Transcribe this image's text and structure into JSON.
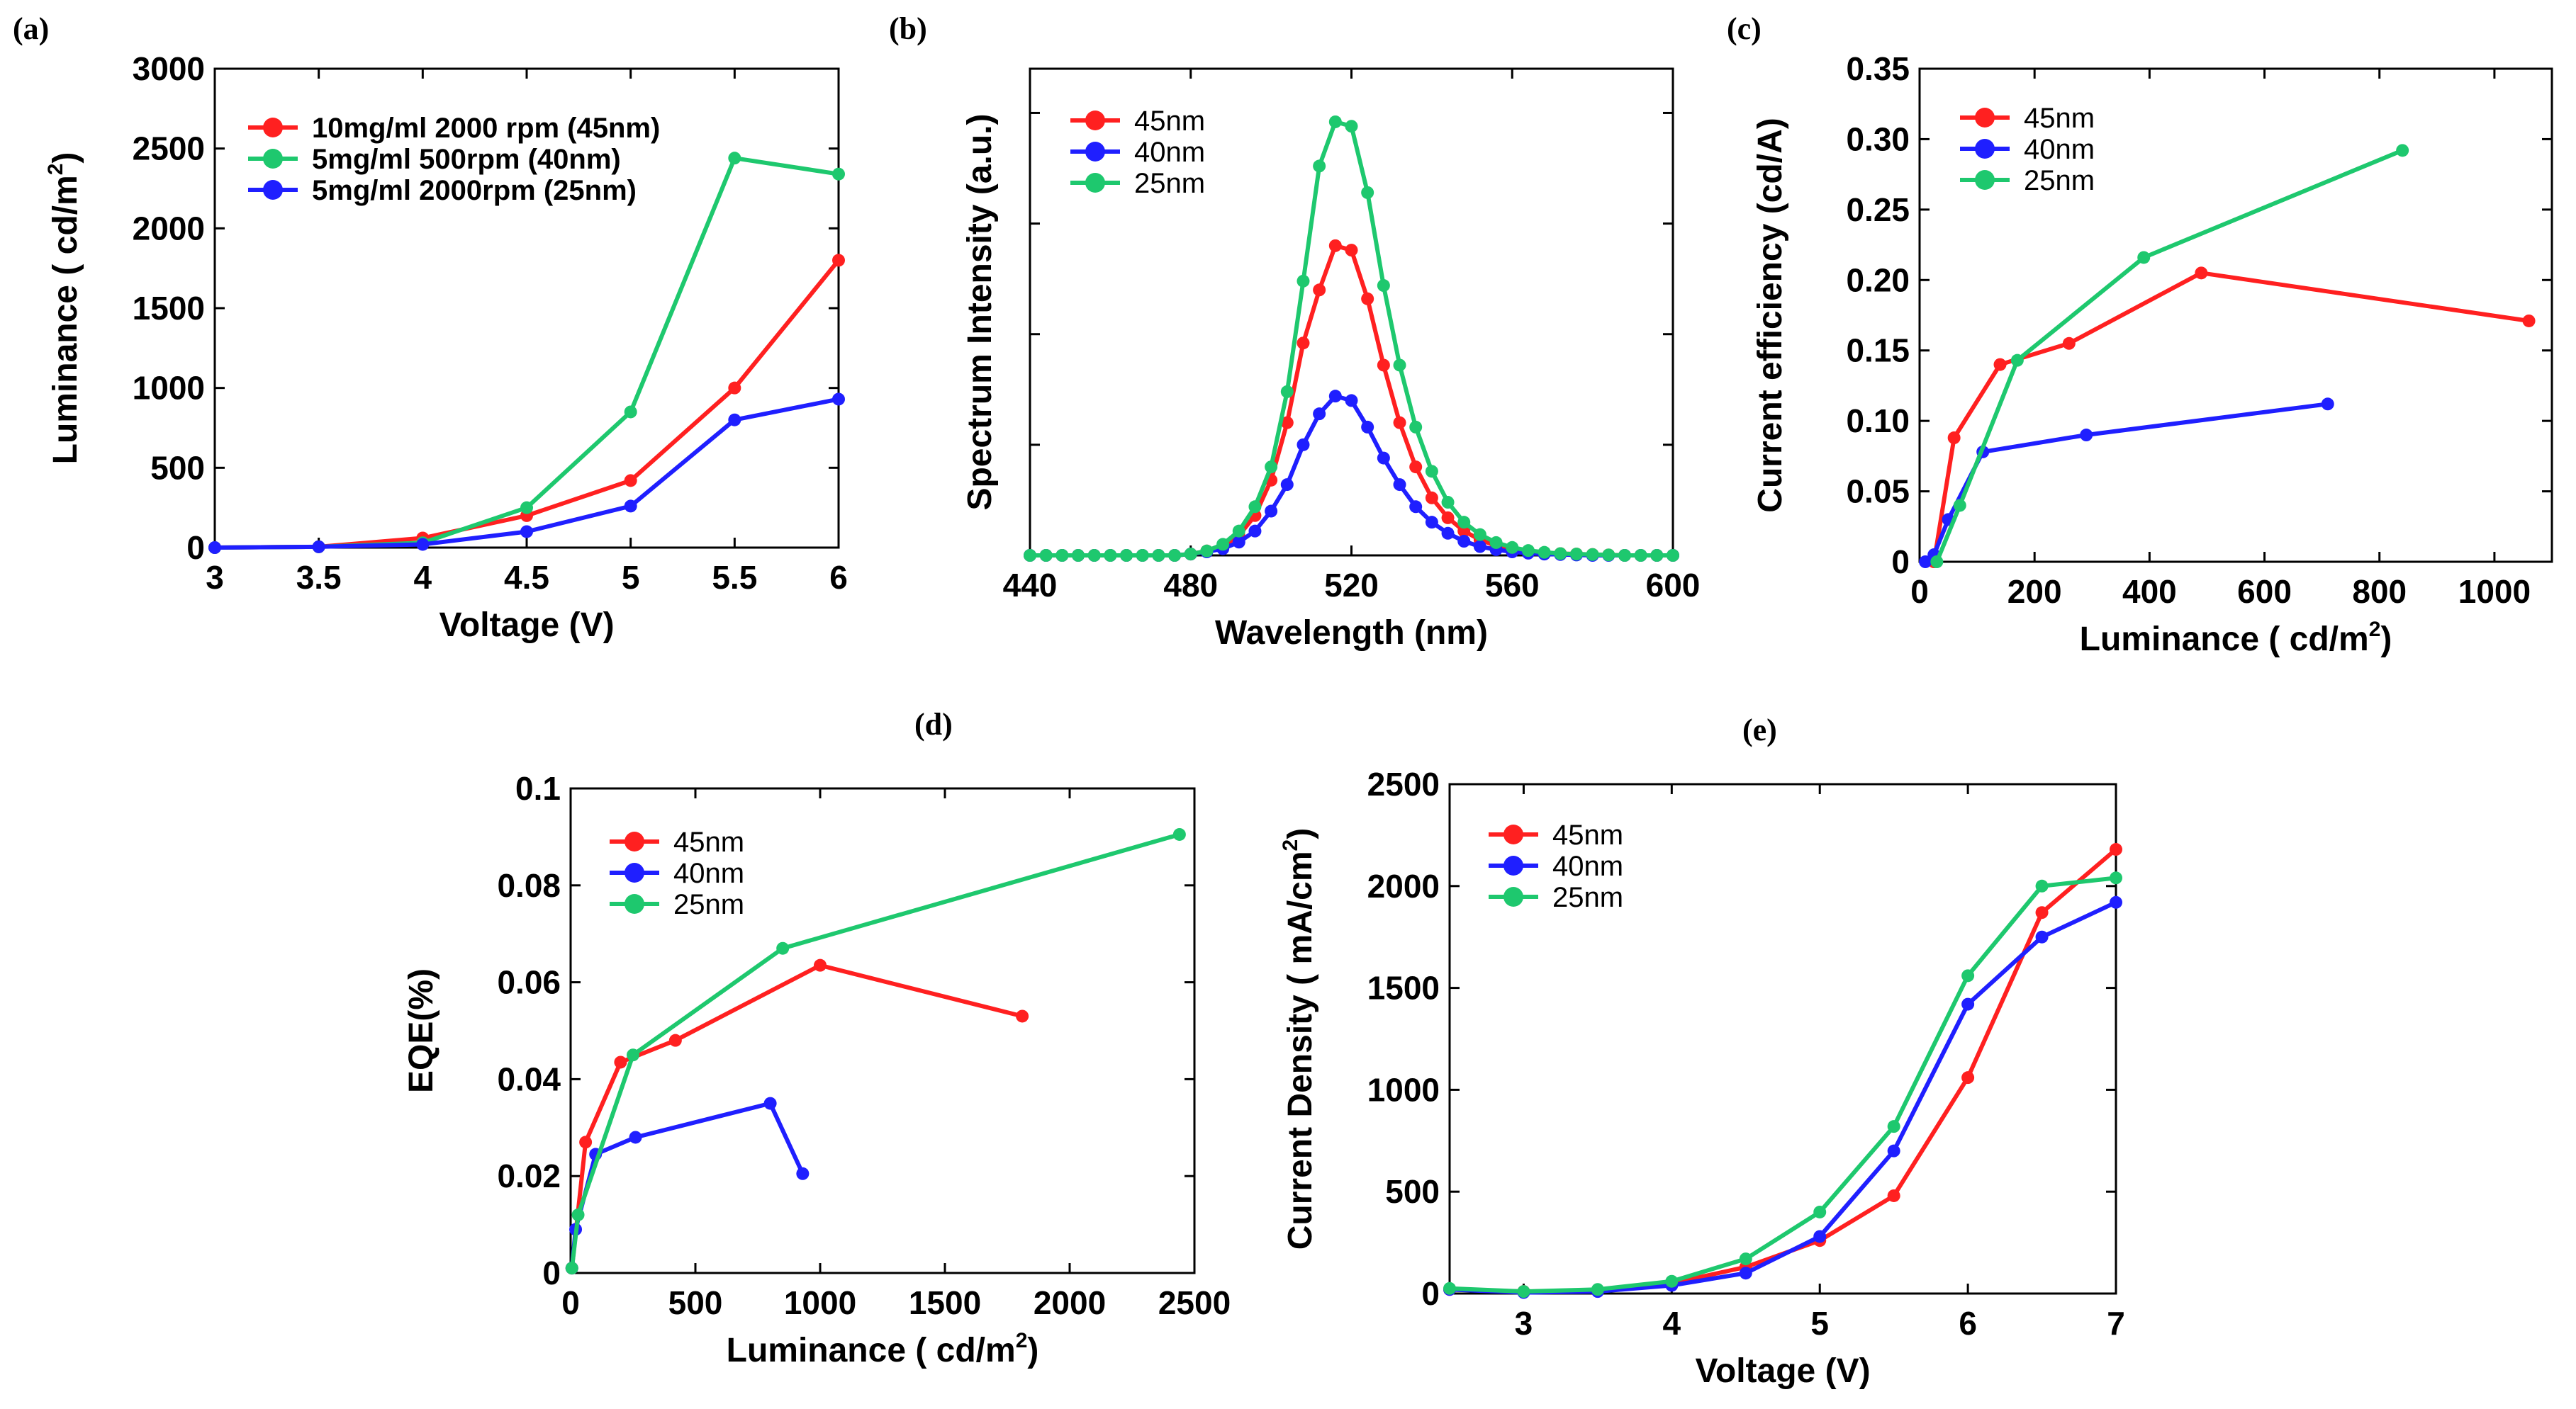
{
  "chart_data": [
    {
      "id": "a",
      "panel_label": "(a)",
      "type": "line",
      "xlabel": "Voltage (V)",
      "ylabel": "Luminance ( cd/m",
      "ylabel_sup": "2",
      "ylabel_end": ")",
      "xlim": [
        3,
        6
      ],
      "ylim": [
        0,
        3000
      ],
      "xticks": [
        3,
        3.5,
        4,
        4.5,
        5,
        5.5,
        6
      ],
      "xtick_labels": [
        "3",
        "3.5",
        "4",
        "4.5",
        "5",
        "5.5",
        "6"
      ],
      "yticks": [
        0,
        500,
        1000,
        1500,
        2000,
        2500,
        3000
      ],
      "ytick_labels": [
        "0",
        "500",
        "1000",
        "1500",
        "2000",
        "2500",
        "3000"
      ],
      "legend_bold": true,
      "series": [
        {
          "name": "10mg/ml 2000 rpm (45nm)",
          "color": "#ff2020",
          "x": [
            3,
            3.5,
            4,
            4.5,
            5,
            5.5,
            6
          ],
          "y": [
            0,
            5,
            60,
            200,
            420,
            1000,
            1800
          ]
        },
        {
          "name": "5mg/ml 500rpm (40nm)",
          "color": "#1ec86e",
          "x": [
            3,
            3.5,
            4,
            4.5,
            5,
            5.5,
            6
          ],
          "y": [
            0,
            5,
            30,
            250,
            850,
            2440,
            2340
          ]
        },
        {
          "name": "5mg/ml 2000rpm (25nm)",
          "color": "#1f1fff",
          "x": [
            3,
            3.5,
            4,
            4.5,
            5,
            5.5,
            6
          ],
          "y": [
            0,
            5,
            20,
            100,
            260,
            800,
            930
          ]
        }
      ]
    },
    {
      "id": "b",
      "panel_label": "(b)",
      "type": "line",
      "xlabel": "Wavelength (nm)",
      "ylabel": "Spectrum Intensity (a.u.)",
      "xlim": [
        440,
        600
      ],
      "ylim": [
        0,
        1.1
      ],
      "xticks": [
        440,
        480,
        520,
        560,
        600
      ],
      "xtick_labels": [
        "440",
        "480",
        "520",
        "560",
        "600"
      ],
      "yticks": [
        0,
        0.25,
        0.5,
        0.75,
        1.0
      ],
      "ytick_labels": [],
      "legend_bold": false,
      "series": [
        {
          "name": "45nm",
          "color": "#ff2020",
          "x": [
            440,
            444,
            448,
            452,
            456,
            460,
            464,
            468,
            472,
            476,
            480,
            484,
            488,
            492,
            496,
            500,
            504,
            508,
            512,
            516,
            520,
            524,
            528,
            532,
            536,
            540,
            544,
            548,
            552,
            556,
            560,
            564,
            568,
            572,
            576,
            580,
            584,
            588,
            592,
            596,
            600
          ],
          "y": [
            0,
            0,
            0,
            0,
            0,
            0,
            0,
            0,
            0,
            0,
            0.003,
            0.01,
            0.02,
            0.045,
            0.09,
            0.17,
            0.3,
            0.48,
            0.6,
            0.7,
            0.69,
            0.58,
            0.43,
            0.3,
            0.2,
            0.13,
            0.085,
            0.055,
            0.035,
            0.022,
            0.014,
            0.009,
            0.006,
            0.004,
            0.003,
            0.002,
            0.001,
            0,
            0,
            0,
            0
          ]
        },
        {
          "name": "40nm",
          "color": "#1f1fff",
          "x": [
            440,
            444,
            448,
            452,
            456,
            460,
            464,
            468,
            472,
            476,
            480,
            484,
            488,
            492,
            496,
            500,
            504,
            508,
            512,
            516,
            520,
            524,
            528,
            532,
            536,
            540,
            544,
            548,
            552,
            556,
            560,
            564,
            568,
            572,
            576,
            580,
            584,
            588,
            592,
            596,
            600
          ],
          "y": [
            0,
            0,
            0,
            0,
            0,
            0,
            0,
            0,
            0,
            0,
            0.003,
            0.008,
            0.015,
            0.03,
            0.055,
            0.1,
            0.16,
            0.25,
            0.32,
            0.36,
            0.35,
            0.29,
            0.22,
            0.16,
            0.11,
            0.075,
            0.05,
            0.032,
            0.02,
            0.013,
            0.008,
            0.005,
            0.003,
            0.002,
            0.001,
            0,
            0,
            0,
            0,
            0,
            0
          ]
        },
        {
          "name": "25nm",
          "color": "#1ec86e",
          "x": [
            440,
            444,
            448,
            452,
            456,
            460,
            464,
            468,
            472,
            476,
            480,
            484,
            488,
            492,
            496,
            500,
            504,
            508,
            512,
            516,
            520,
            524,
            528,
            532,
            536,
            540,
            544,
            548,
            552,
            556,
            560,
            564,
            568,
            572,
            576,
            580,
            584,
            588,
            592,
            596,
            600
          ],
          "y": [
            0,
            0,
            0,
            0,
            0,
            0,
            0,
            0,
            0,
            0,
            0.003,
            0.01,
            0.025,
            0.055,
            0.11,
            0.2,
            0.37,
            0.62,
            0.88,
            0.98,
            0.97,
            0.82,
            0.61,
            0.43,
            0.29,
            0.19,
            0.12,
            0.075,
            0.047,
            0.029,
            0.018,
            0.011,
            0.007,
            0.004,
            0.003,
            0.002,
            0.001,
            0,
            0,
            0,
            0
          ]
        }
      ]
    },
    {
      "id": "c",
      "panel_label": "(c)",
      "type": "line",
      "xlabel": "Luminance ( cd/m",
      "xlabel_sup": "2",
      "xlabel_end": ")",
      "ylabel": "Current efficiency (cd/A)",
      "xlim": [
        0,
        1100
      ],
      "ylim": [
        0,
        0.35
      ],
      "xticks": [
        0,
        200,
        400,
        600,
        800,
        1000
      ],
      "xtick_labels": [
        "0",
        "200",
        "400",
        "600",
        "800",
        "1000"
      ],
      "yticks": [
        0,
        0.05,
        0.1,
        0.15,
        0.2,
        0.25,
        0.3,
        0.35
      ],
      "ytick_labels": [
        "0",
        "0.05",
        "0.10",
        "0.15",
        "0.20",
        "0.25",
        "0.30",
        "0.35"
      ],
      "legend_bold": false,
      "series": [
        {
          "name": "45nm",
          "color": "#ff2020",
          "x": [
            25,
            60,
            140,
            260,
            490,
            1060
          ],
          "y": [
            0,
            0.088,
            0.14,
            0.155,
            0.205,
            0.171
          ]
        },
        {
          "name": "40nm",
          "color": "#1f1fff",
          "x": [
            10,
            25,
            50,
            110,
            290,
            710
          ],
          "y": [
            0,
            0.005,
            0.03,
            0.078,
            0.09,
            0.112
          ]
        },
        {
          "name": "25nm",
          "color": "#1ec86e",
          "x": [
            30,
            70,
            170,
            390,
            840
          ],
          "y": [
            0,
            0.04,
            0.143,
            0.216,
            0.292
          ]
        }
      ]
    },
    {
      "id": "d",
      "panel_label": "(d)",
      "type": "line",
      "xlabel": "Luminance ( cd/m",
      "xlabel_sup": "2",
      "xlabel_end": ")",
      "ylabel": "EQE(%)",
      "xlim": [
        0,
        2500
      ],
      "ylim": [
        0,
        0.1
      ],
      "xticks": [
        0,
        500,
        1000,
        1500,
        2000,
        2500
      ],
      "xtick_labels": [
        "0",
        "500",
        "1000",
        "1500",
        "2000",
        "2500"
      ],
      "yticks": [
        0,
        0.02,
        0.04,
        0.06,
        0.08,
        0.1
      ],
      "ytick_labels": [
        "0",
        "0.02",
        "0.04",
        "0.06",
        "0.08",
        "0.1"
      ],
      "legend_bold": false,
      "series": [
        {
          "name": "45nm",
          "color": "#ff2020",
          "x": [
            5,
            60,
            200,
            420,
            1000,
            1810
          ],
          "y": [
            0.001,
            0.027,
            0.0435,
            0.048,
            0.0635,
            0.053
          ]
        },
        {
          "name": "40nm",
          "color": "#1f1fff",
          "x": [
            5,
            20,
            100,
            260,
            800,
            930
          ],
          "y": [
            0.001,
            0.009,
            0.0245,
            0.028,
            0.035,
            0.0205
          ]
        },
        {
          "name": "25nm",
          "color": "#1ec86e",
          "x": [
            5,
            30,
            250,
            850,
            2440
          ],
          "y": [
            0.001,
            0.012,
            0.045,
            0.067,
            0.0905
          ]
        }
      ]
    },
    {
      "id": "e",
      "panel_label": "(e)",
      "type": "line",
      "xlabel": "Voltage (V)",
      "ylabel": "Current Density ( mA/cm",
      "ylabel_sup": "2",
      "ylabel_end": ")",
      "xlim": [
        2.5,
        7
      ],
      "ylim": [
        0,
        2500
      ],
      "xticks": [
        3,
        4,
        5,
        6,
        7
      ],
      "xtick_labels": [
        "3",
        "4",
        "5",
        "6",
        "7"
      ],
      "yticks": [
        0,
        500,
        1000,
        1500,
        2000,
        2500
      ],
      "ytick_labels": [
        "0",
        "500",
        "1000",
        "1500",
        "2000",
        "2500"
      ],
      "legend_bold": false,
      "series": [
        {
          "name": "45nm",
          "color": "#ff2020",
          "x": [
            2.5,
            3,
            3.5,
            4,
            4.5,
            5,
            5.5,
            6,
            6.5,
            7
          ],
          "y": [
            20,
            10,
            15,
            50,
            130,
            260,
            480,
            1060,
            1870,
            2180
          ]
        },
        {
          "name": "40nm",
          "color": "#1f1fff",
          "x": [
            2.5,
            3,
            3.5,
            4,
            4.5,
            5,
            5.5,
            6,
            6.5,
            7
          ],
          "y": [
            20,
            5,
            10,
            40,
            100,
            280,
            700,
            1420,
            1750,
            1920
          ]
        },
        {
          "name": "25nm",
          "color": "#1ec86e",
          "x": [
            2.5,
            3,
            3.5,
            4,
            4.5,
            5,
            5.5,
            6,
            6.5,
            7
          ],
          "y": [
            25,
            10,
            20,
            60,
            170,
            400,
            820,
            1560,
            2000,
            2040
          ]
        }
      ]
    }
  ]
}
